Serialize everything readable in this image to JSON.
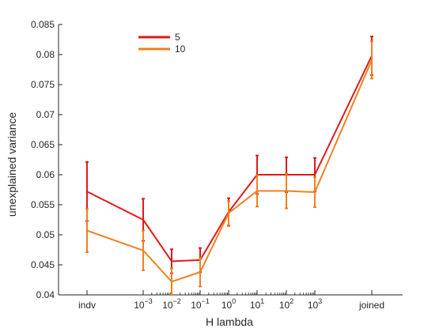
{
  "chart_data": {
    "type": "line",
    "xlabel": "H lambda",
    "ylabel": "unexplained variance",
    "x_ticks": [
      {
        "base": "indv",
        "exp": ""
      },
      {
        "base": "10",
        "exp": "−3"
      },
      {
        "base": "10",
        "exp": "−2"
      },
      {
        "base": "10",
        "exp": "−1"
      },
      {
        "base": "10",
        "exp": "0"
      },
      {
        "base": "10",
        "exp": "1"
      },
      {
        "base": "10",
        "exp": "2"
      },
      {
        "base": "10",
        "exp": "3"
      },
      {
        "base": "joined",
        "exp": ""
      }
    ],
    "ylim": [
      0.04,
      0.085
    ],
    "y_ticks": [
      "0.04",
      "0.045",
      "0.05",
      "0.055",
      "0.06",
      "0.065",
      "0.07",
      "0.075",
      "0.08",
      "0.085"
    ],
    "grid": false,
    "legend_position": "top-left",
    "series": [
      {
        "name": "5",
        "color": "#e01a1a",
        "values": [
          0.0572,
          0.0525,
          0.0456,
          0.0458,
          0.0538,
          0.06,
          0.06,
          0.06,
          0.0798
        ],
        "error": [
          0.0049,
          0.0035,
          0.002,
          0.002,
          0.0023,
          0.0032,
          0.0029,
          0.0028,
          0.0032
        ]
      },
      {
        "name": "10",
        "color": "#f08020",
        "values": [
          0.0507,
          0.0474,
          0.0422,
          0.0438,
          0.0536,
          0.0573,
          0.0573,
          0.0571,
          0.0791
        ],
        "error": [
          0.0036,
          0.0033,
          0.0022,
          0.0024,
          0.002,
          0.0026,
          0.0029,
          0.0025,
          0.0031
        ]
      }
    ]
  }
}
